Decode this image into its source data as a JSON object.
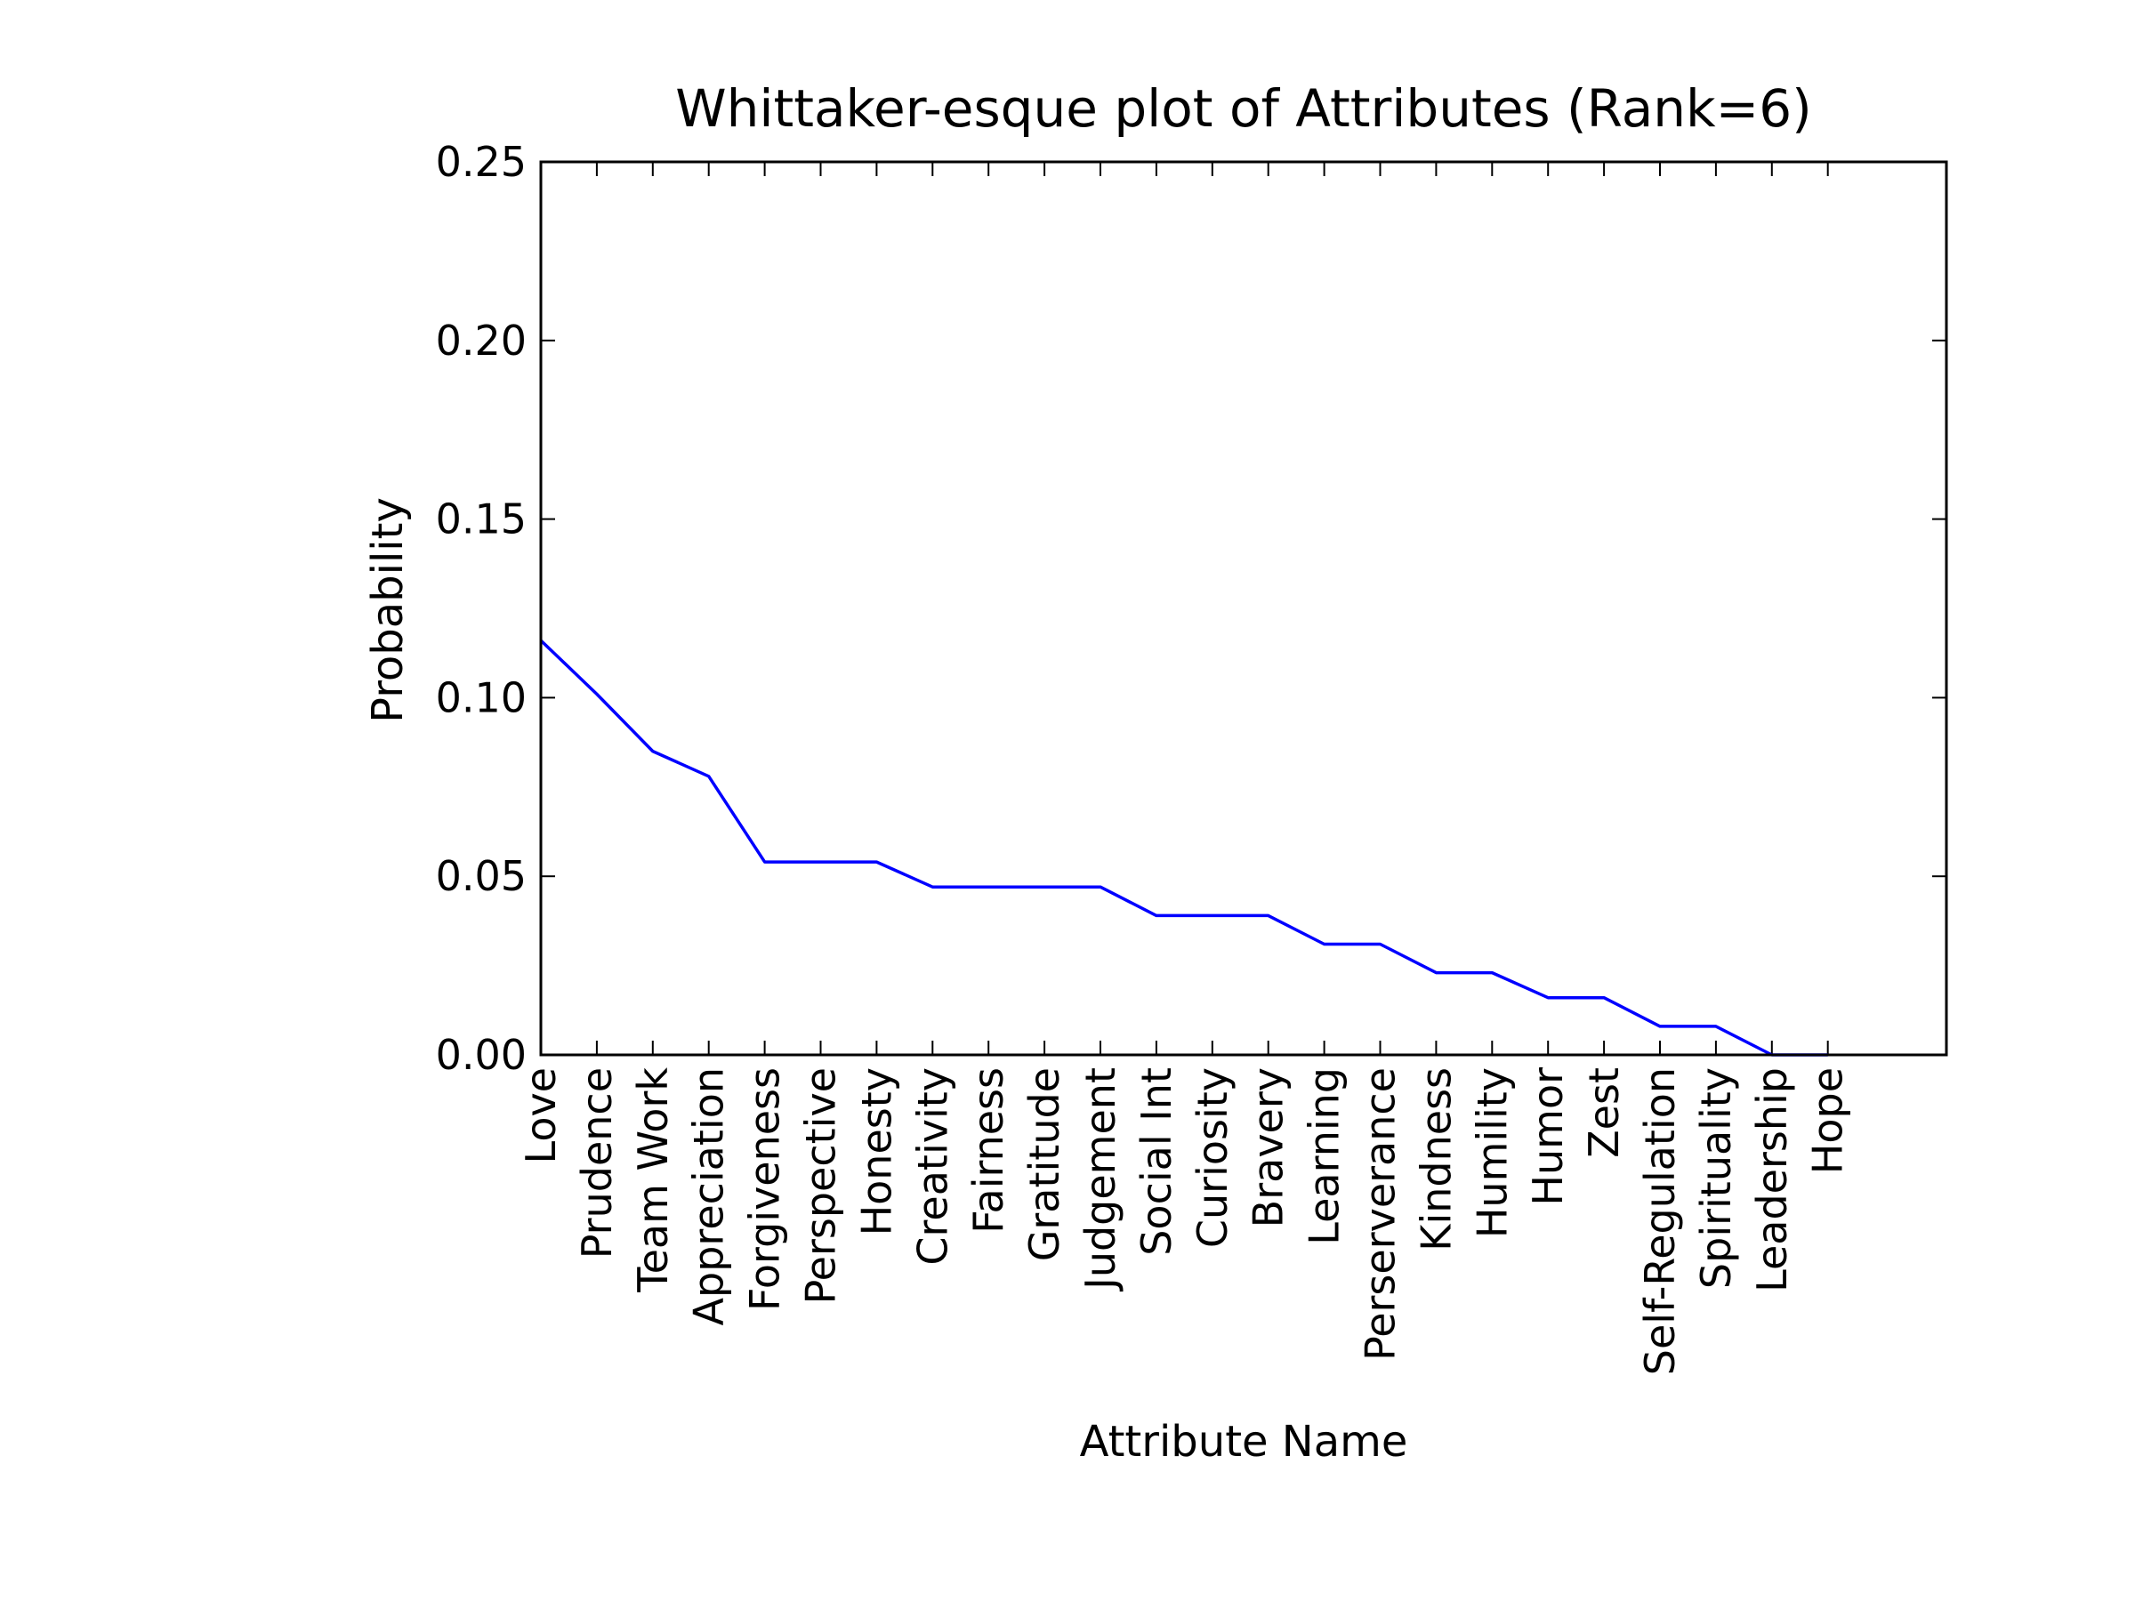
{
  "chart_data": {
    "type": "line",
    "title": "Whittaker-esque plot of Attributes (Rank=6)",
    "xlabel": "Attribute Name",
    "ylabel": "Probability",
    "categories": [
      "Love",
      "Prudence",
      "Team Work",
      "Appreciation",
      "Forgiveness",
      "Perspective",
      "Honesty",
      "Creativity",
      "Fairness",
      "Gratitude",
      "Judgement",
      "Social Int",
      "Curiosity",
      "Bravery",
      "Learning",
      "Perserverance",
      "Kindness",
      "Humility",
      "Humor",
      "Zest",
      "Self-Regulation",
      "Spirituality",
      "Leadership",
      "Hope"
    ],
    "series": [
      {
        "values": [
          0.116,
          0.101,
          0.085,
          0.078,
          0.054,
          0.054,
          0.054,
          0.047,
          0.047,
          0.047,
          0.047,
          0.039,
          0.039,
          0.039,
          0.031,
          0.031,
          0.023,
          0.023,
          0.016,
          0.016,
          0.008,
          0.008,
          0.0,
          0.0
        ],
        "color": "#0000ff"
      }
    ],
    "ylim": [
      0,
      0.25
    ],
    "yticks": [
      "0.00",
      "0.05",
      "0.10",
      "0.15",
      "0.20",
      "0.25"
    ],
    "grid": false,
    "legend": "none"
  }
}
